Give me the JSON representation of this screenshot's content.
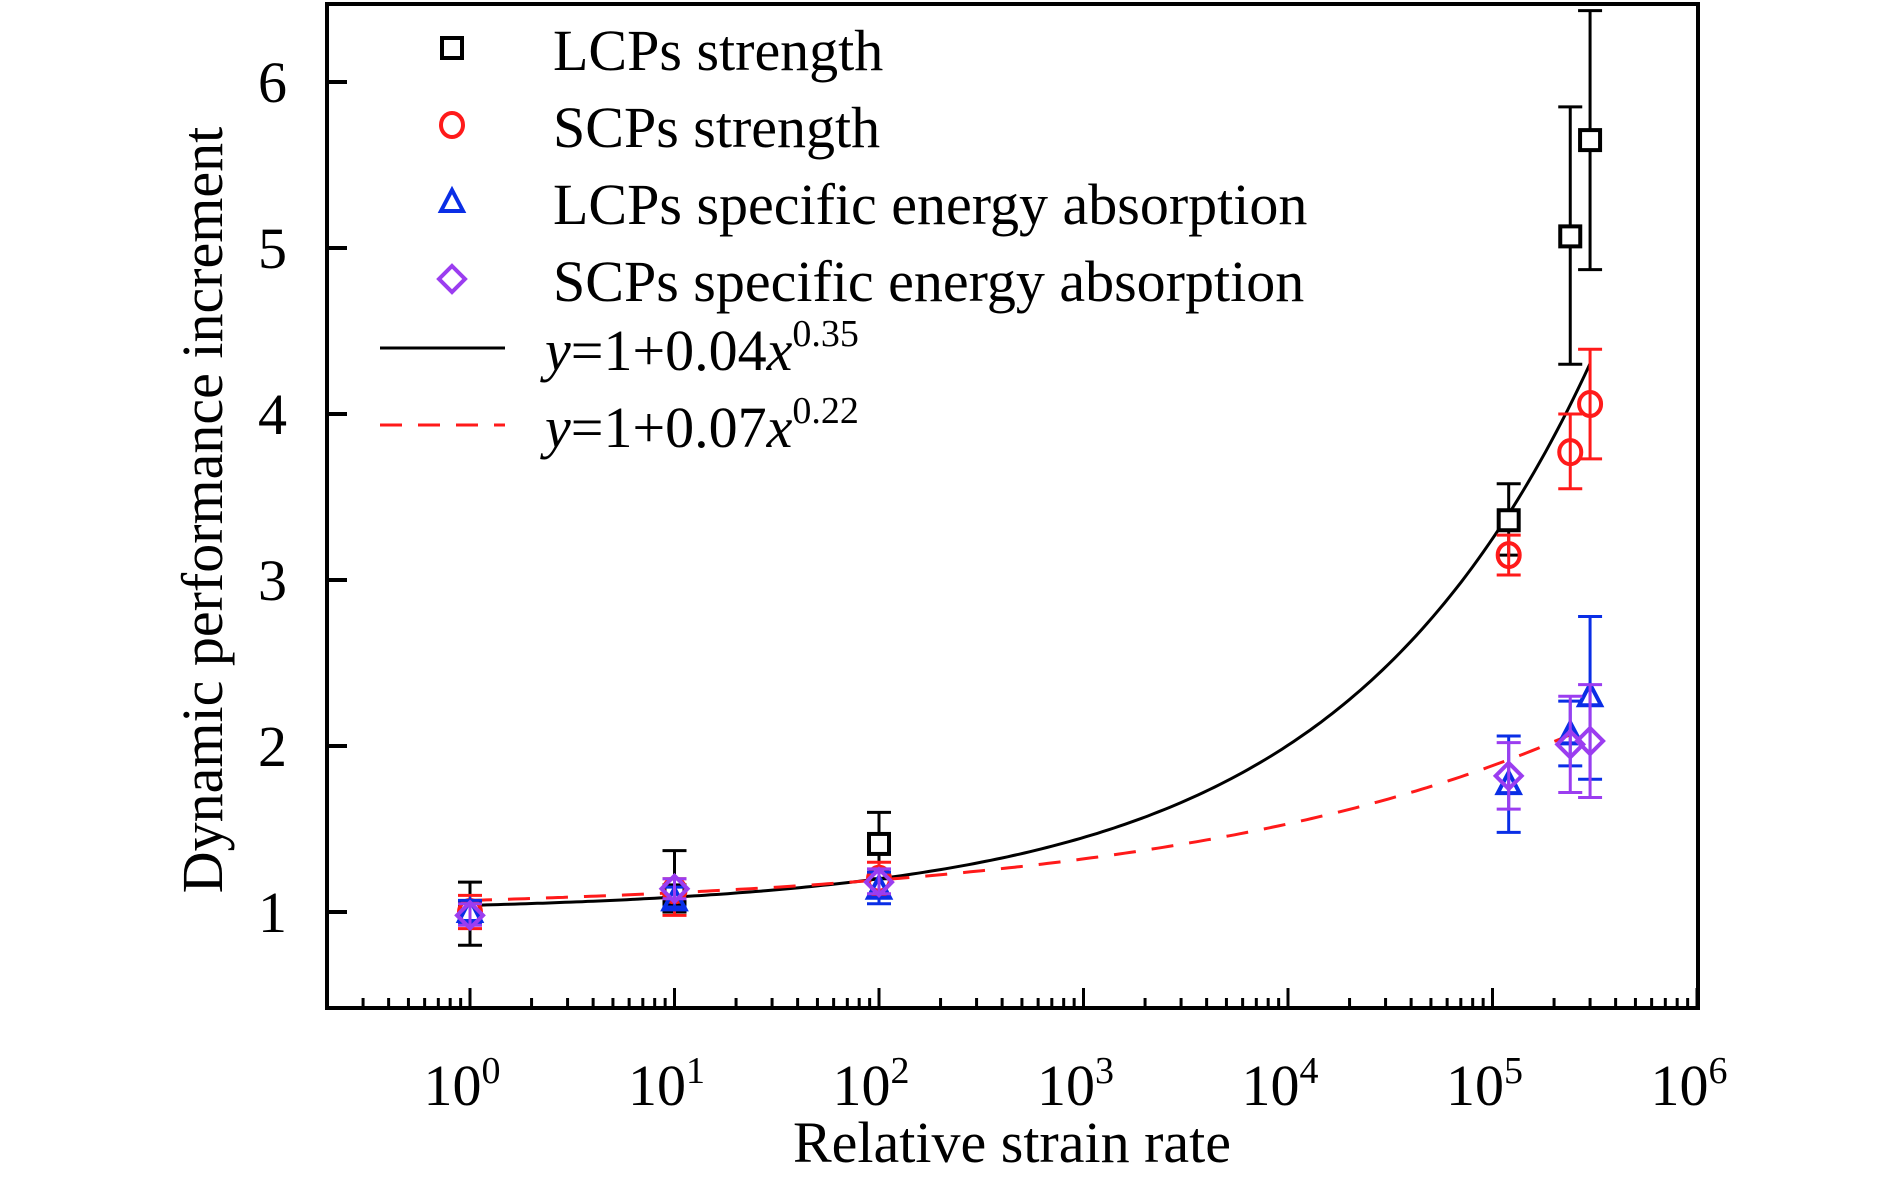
{
  "chart_data": {
    "type": "scatter",
    "title": "",
    "xlabel": "Relative strain rate",
    "ylabel": "Dynamic performance increment",
    "xscale": "log",
    "xlim": [
      0.2,
      1000000
    ],
    "ylim": [
      0.5,
      6.5
    ],
    "yticks": [
      1,
      2,
      3,
      4,
      5,
      6
    ],
    "xticks": [
      {
        "exp": 0,
        "label_base": "10",
        "label_exp": "0"
      },
      {
        "exp": 1,
        "label_base": "10",
        "label_exp": "1"
      },
      {
        "exp": 2,
        "label_base": "10",
        "label_exp": "2"
      },
      {
        "exp": 3,
        "label_base": "10",
        "label_exp": "3"
      },
      {
        "exp": 4,
        "label_base": "10",
        "label_exp": "4"
      },
      {
        "exp": 5,
        "label_base": "10",
        "label_exp": "5"
      },
      {
        "exp": 6,
        "label_base": "10",
        "label_exp": "6"
      }
    ],
    "grid": false,
    "legend_position": "top-left",
    "series": [
      {
        "name": "LCPs strength",
        "marker": "square",
        "color": "#000000",
        "x": [
          1,
          10,
          100,
          120000,
          240000,
          300000
        ],
        "y": [
          1.0,
          1.1,
          1.41,
          3.36,
          5.07,
          5.65
        ],
        "err_low": [
          0.8,
          1.0,
          1.2,
          3.15,
          4.3,
          4.87
        ],
        "err_high": [
          1.18,
          1.37,
          1.6,
          3.58,
          5.85,
          6.43
        ]
      },
      {
        "name": "SCPs strength",
        "marker": "circle",
        "color": "#ff1a1a",
        "x": [
          1,
          10,
          100,
          120000,
          240000,
          300000
        ],
        "y": [
          1.0,
          1.13,
          1.2,
          3.15,
          3.77,
          4.06
        ],
        "err_low": [
          0.9,
          0.98,
          1.1,
          3.03,
          3.55,
          3.73
        ],
        "err_high": [
          1.1,
          1.2,
          1.3,
          3.27,
          4.0,
          4.39
        ]
      },
      {
        "name": "LCPs specific energy absorption",
        "marker": "triangle",
        "color": "#0a2ee6",
        "x": [
          1,
          10,
          100,
          120000,
          240000,
          300000
        ],
        "y": [
          1.0,
          1.07,
          1.14,
          1.77,
          2.07,
          2.3
        ],
        "err_low": [
          0.93,
          1.03,
          1.05,
          1.48,
          1.88,
          1.8
        ],
        "err_high": [
          1.07,
          1.15,
          1.24,
          2.06,
          2.27,
          2.78
        ]
      },
      {
        "name": "SCPs specific energy absorption",
        "marker": "diamond",
        "color": "#9b3df0",
        "x": [
          1,
          10,
          100,
          120000,
          240000,
          300000
        ],
        "y": [
          0.98,
          1.14,
          1.18,
          1.82,
          2.01,
          2.03
        ],
        "err_low": [
          0.92,
          1.08,
          1.11,
          1.62,
          1.72,
          1.69
        ],
        "err_high": [
          1.05,
          1.2,
          1.26,
          2.02,
          2.3,
          2.37
        ]
      }
    ],
    "fits": [
      {
        "label_prefix": "y",
        "label_main": "=1+0.04",
        "label_var": "x",
        "label_exp": "0.35",
        "a": 0.04,
        "b": 0.35,
        "x_range": [
          1,
          300000
        ],
        "style": "solid",
        "color": "#000000"
      },
      {
        "label_prefix": "y",
        "label_main": "=1+0.07",
        "label_var": "x",
        "label_exp": "0.22",
        "a": 0.07,
        "b": 0.22,
        "x_range": [
          1,
          240000
        ],
        "style": "dashed",
        "color": "#ff1a1a"
      }
    ]
  }
}
